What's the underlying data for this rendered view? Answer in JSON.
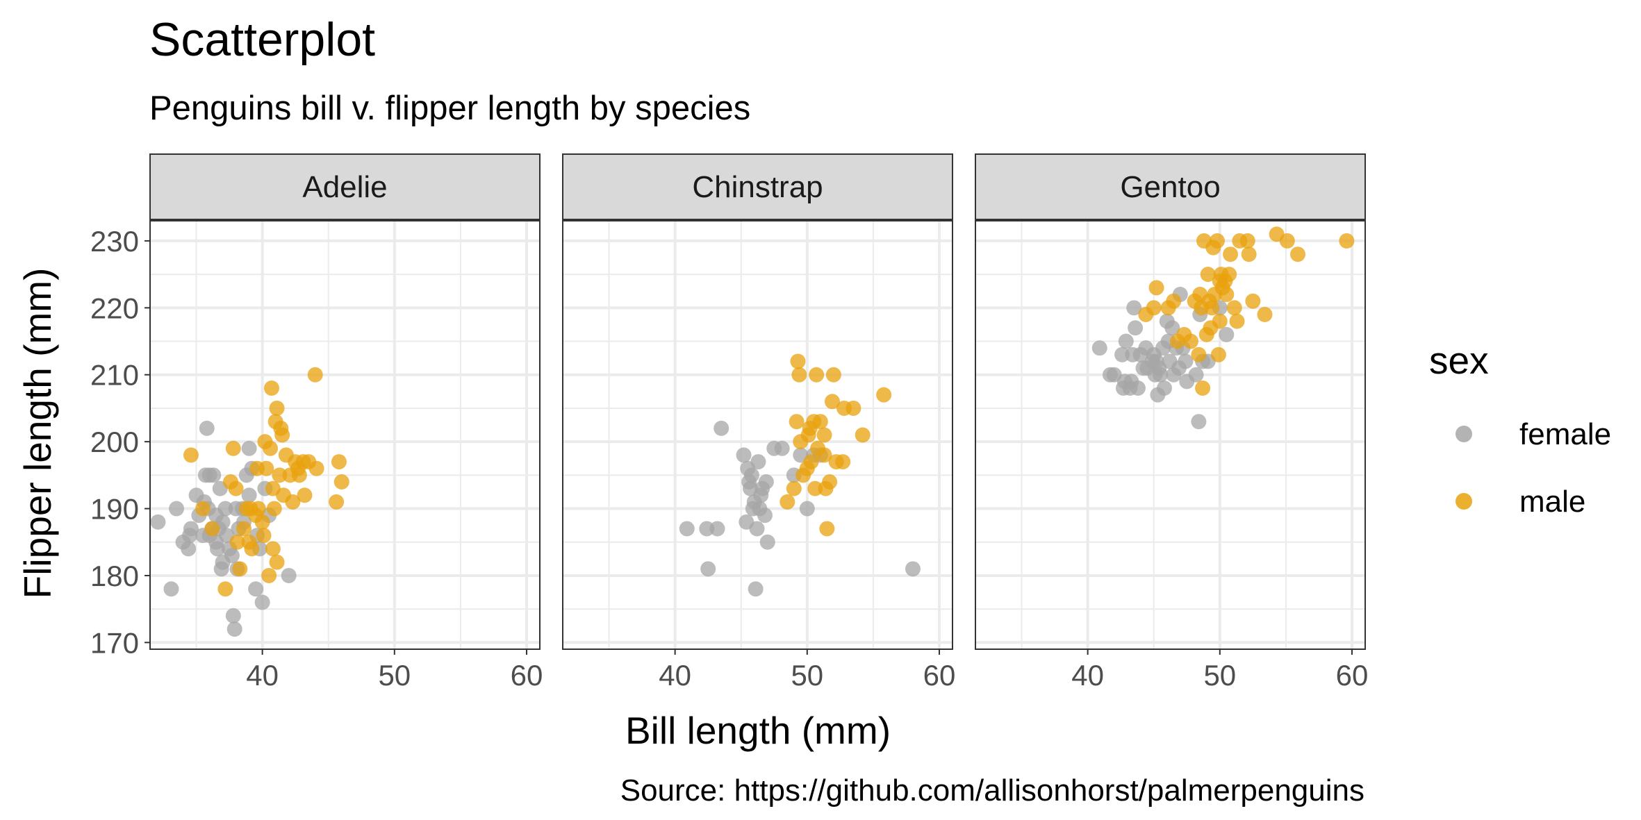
{
  "title": "Scatterplot",
  "subtitle": "Penguins bill v. flipper length by species",
  "caption": "Source: https://github.com/allisonhorst/palmerpenguins",
  "colors": {
    "female": "#a6a6a6",
    "male": "#e8a20c",
    "grid": "#ebebeb",
    "panel_border": "#333333",
    "strip_bg": "#d9d9d9"
  },
  "chart_data": {
    "type": "scatter",
    "title": "Scatterplot",
    "subtitle": "Penguins bill v. flipper length by species",
    "xlabel": "Bill length (mm)",
    "ylabel": "Flipper length (mm)",
    "xlim": [
      31.5,
      61
    ],
    "ylim": [
      169,
      233
    ],
    "x_ticks": [
      40,
      50,
      60
    ],
    "y_ticks": [
      170,
      180,
      190,
      200,
      210,
      220,
      230
    ],
    "grid": true,
    "legend": {
      "title": "sex",
      "position": "right",
      "entries": [
        "female",
        "male"
      ]
    },
    "facets": [
      "Adelie",
      "Chinstrap",
      "Gentoo"
    ],
    "series": [
      {
        "name": "female",
        "facets": {
          "Adelie": [
            [
              32.1,
              188
            ],
            [
              33.1,
              178
            ],
            [
              33.5,
              190
            ],
            [
              34.0,
              185
            ],
            [
              34.4,
              184
            ],
            [
              34.6,
              187
            ],
            [
              35.0,
              192
            ],
            [
              35.2,
              189
            ],
            [
              35.5,
              186
            ],
            [
              35.6,
              191
            ],
            [
              35.7,
              195
            ],
            [
              35.8,
              202
            ],
            [
              35.9,
              190
            ],
            [
              36.0,
              186
            ],
            [
              36.2,
              187
            ],
            [
              36.3,
              195
            ],
            [
              36.5,
              185
            ],
            [
              36.6,
              184
            ],
            [
              36.7,
              187
            ],
            [
              36.8,
              193
            ],
            [
              36.9,
              181
            ],
            [
              37.0,
              182
            ],
            [
              37.2,
              190
            ],
            [
              37.3,
              186
            ],
            [
              37.5,
              184
            ],
            [
              37.7,
              183
            ],
            [
              37.8,
              174
            ],
            [
              37.9,
              172
            ],
            [
              38.1,
              181
            ],
            [
              38.2,
              187
            ],
            [
              38.5,
              190
            ],
            [
              38.6,
              188
            ],
            [
              38.8,
              195
            ],
            [
              39.0,
              199
            ],
            [
              39.2,
              196
            ],
            [
              39.5,
              178
            ],
            [
              39.6,
              186
            ],
            [
              39.8,
              184
            ],
            [
              40.0,
              176
            ],
            [
              40.2,
              193
            ],
            [
              40.5,
              189
            ],
            [
              42.0,
              180
            ],
            [
              38.0,
              190
            ],
            [
              36.0,
              195
            ],
            [
              37.0,
              188
            ],
            [
              39.0,
              192
            ],
            [
              34.5,
              186
            ],
            [
              36.5,
              189
            ]
          ],
          "Chinstrap": [
            [
              40.9,
              187
            ],
            [
              42.4,
              187
            ],
            [
              42.5,
              181
            ],
            [
              43.2,
              187
            ],
            [
              43.5,
              202
            ],
            [
              45.2,
              198
            ],
            [
              45.4,
              188
            ],
            [
              45.5,
              196
            ],
            [
              45.6,
              194
            ],
            [
              45.7,
              193
            ],
            [
              45.9,
              190
            ],
            [
              46.0,
              191
            ],
            [
              46.1,
              178
            ],
            [
              46.2,
              187
            ],
            [
              46.4,
              190
            ],
            [
              46.5,
              192
            ],
            [
              46.6,
              193
            ],
            [
              46.8,
              189
            ],
            [
              46.9,
              194
            ],
            [
              47.0,
              185
            ],
            [
              47.5,
              199
            ],
            [
              48.1,
              199
            ],
            [
              49.0,
              195
            ],
            [
              49.5,
              198
            ],
            [
              50.0,
              190
            ],
            [
              50.5,
              198
            ],
            [
              51.0,
              198
            ],
            [
              58.0,
              181
            ],
            [
              45.8,
              195
            ],
            [
              46.3,
              197
            ]
          ],
          "Gentoo": [
            [
              40.9,
              214
            ],
            [
              41.7,
              210
            ],
            [
              42.0,
              210
            ],
            [
              42.6,
              213
            ],
            [
              42.7,
              208
            ],
            [
              42.8,
              209
            ],
            [
              42.9,
              215
            ],
            [
              43.2,
              208
            ],
            [
              43.3,
              209
            ],
            [
              43.4,
              213
            ],
            [
              43.5,
              220
            ],
            [
              43.6,
              217
            ],
            [
              43.8,
              208
            ],
            [
              44.0,
              213
            ],
            [
              44.4,
              214
            ],
            [
              44.5,
              211
            ],
            [
              44.9,
              212
            ],
            [
              45.1,
              210
            ],
            [
              45.2,
              212
            ],
            [
              45.3,
              207
            ],
            [
              45.4,
              211
            ],
            [
              45.5,
              210
            ],
            [
              45.7,
              214
            ],
            [
              45.8,
              208
            ],
            [
              46.1,
              215
            ],
            [
              46.2,
              212
            ],
            [
              46.4,
              217
            ],
            [
              46.5,
              210
            ],
            [
              46.7,
              214
            ],
            [
              46.9,
              211
            ],
            [
              47.2,
              214
            ],
            [
              47.4,
              212
            ],
            [
              47.5,
              209
            ],
            [
              48.2,
              210
            ],
            [
              48.4,
              203
            ],
            [
              48.5,
              219
            ],
            [
              48.7,
              212
            ],
            [
              49.1,
              212
            ],
            [
              50.0,
              220
            ],
            [
              50.5,
              216
            ],
            [
              46.0,
              218
            ],
            [
              47.0,
              222
            ],
            [
              45.0,
              213
            ],
            [
              44.2,
              211
            ]
          ]
        }
      },
      {
        "name": "male",
        "facets": {
          "Adelie": [
            [
              34.6,
              198
            ],
            [
              35.5,
              190
            ],
            [
              36.2,
              187
            ],
            [
              37.2,
              178
            ],
            [
              37.6,
              194
            ],
            [
              37.8,
              199
            ],
            [
              38.0,
              193
            ],
            [
              38.1,
              185
            ],
            [
              38.3,
              181
            ],
            [
              38.6,
              187
            ],
            [
              38.8,
              190
            ],
            [
              39.0,
              185
            ],
            [
              39.2,
              184
            ],
            [
              39.5,
              189
            ],
            [
              39.7,
              190
            ],
            [
              40.0,
              188
            ],
            [
              40.1,
              186
            ],
            [
              40.2,
              200
            ],
            [
              40.3,
              196
            ],
            [
              40.5,
              180
            ],
            [
              40.6,
              199
            ],
            [
              40.7,
              208
            ],
            [
              40.8,
              184
            ],
            [
              40.9,
              190
            ],
            [
              41.0,
              203
            ],
            [
              41.1,
              182
            ],
            [
              41.3,
              195
            ],
            [
              41.4,
              202
            ],
            [
              41.5,
              201
            ],
            [
              41.8,
              198
            ],
            [
              42.1,
              195
            ],
            [
              42.3,
              191
            ],
            [
              42.5,
              197
            ],
            [
              42.7,
              196
            ],
            [
              42.8,
              195
            ],
            [
              43.1,
              197
            ],
            [
              43.2,
              192
            ],
            [
              43.5,
              197
            ],
            [
              44.1,
              196
            ],
            [
              44.0,
              210
            ],
            [
              45.6,
              191
            ],
            [
              45.8,
              197
            ],
            [
              46.0,
              194
            ],
            [
              39.1,
              190
            ],
            [
              41.1,
              205
            ],
            [
              39.6,
              196
            ],
            [
              40.8,
              193
            ],
            [
              41.6,
              192
            ]
          ],
          "Chinstrap": [
            [
              48.5,
              191
            ],
            [
              49.0,
              193
            ],
            [
              49.2,
              203
            ],
            [
              49.3,
              212
            ],
            [
              49.5,
              200
            ],
            [
              49.7,
              195
            ],
            [
              50.0,
              196
            ],
            [
              50.1,
              201
            ],
            [
              50.2,
              202
            ],
            [
              50.3,
              197
            ],
            [
              50.5,
              203
            ],
            [
              50.6,
              193
            ],
            [
              50.7,
              210
            ],
            [
              50.8,
              199
            ],
            [
              51.0,
              203
            ],
            [
              51.3,
              201
            ],
            [
              51.4,
              193
            ],
            [
              51.5,
              187
            ],
            [
              51.7,
              194
            ],
            [
              51.9,
              206
            ],
            [
              52.0,
              210
            ],
            [
              52.2,
              197
            ],
            [
              52.7,
              197
            ],
            [
              52.8,
              205
            ],
            [
              53.5,
              205
            ],
            [
              54.2,
              201
            ],
            [
              55.8,
              207
            ],
            [
              49.4,
              210
            ],
            [
              51.3,
              198
            ]
          ],
          "Gentoo": [
            [
              44.4,
              219
            ],
            [
              45.0,
              220
            ],
            [
              45.2,
              223
            ],
            [
              46.1,
              220
            ],
            [
              46.5,
              221
            ],
            [
              46.8,
              215
            ],
            [
              47.3,
              216
            ],
            [
              47.8,
              215
            ],
            [
              48.1,
              221
            ],
            [
              48.4,
              213
            ],
            [
              48.5,
              222
            ],
            [
              48.6,
              220
            ],
            [
              48.7,
              208
            ],
            [
              49.0,
              216
            ],
            [
              49.1,
              225
            ],
            [
              49.2,
              221
            ],
            [
              49.3,
              217
            ],
            [
              49.5,
              229
            ],
            [
              49.6,
              222
            ],
            [
              49.8,
              230
            ],
            [
              49.9,
              213
            ],
            [
              50.0,
              224
            ],
            [
              50.1,
              225
            ],
            [
              50.2,
              223
            ],
            [
              50.4,
              224
            ],
            [
              50.5,
              222
            ],
            [
              50.7,
              225
            ],
            [
              50.8,
              228
            ],
            [
              51.1,
              220
            ],
            [
              51.3,
              218
            ],
            [
              51.5,
              230
            ],
            [
              52.1,
              230
            ],
            [
              52.2,
              228
            ],
            [
              52.5,
              221
            ],
            [
              53.4,
              219
            ],
            [
              54.3,
              231
            ],
            [
              55.1,
              230
            ],
            [
              55.9,
              228
            ],
            [
              59.6,
              230
            ],
            [
              48.8,
              230
            ],
            [
              50.0,
              218
            ],
            [
              49.4,
              220
            ]
          ]
        }
      }
    ]
  }
}
